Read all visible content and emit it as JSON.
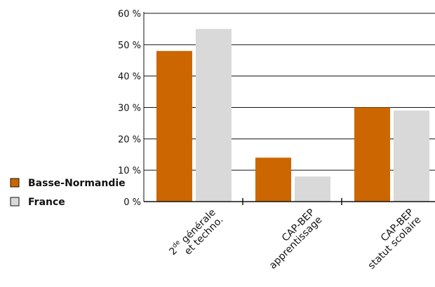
{
  "chart_data": {
    "type": "bar",
    "categories": [
      {
        "label": "2de générale et techno.",
        "lines": [
          {
            "main": "2",
            "sup": "de",
            "rest": " générale"
          },
          {
            "main": "et techno.",
            "sup": "",
            "rest": ""
          }
        ]
      },
      {
        "label": "CAP-BEP apprentissage",
        "lines": [
          {
            "main": "CAP-BEP",
            "sup": "",
            "rest": ""
          },
          {
            "main": "apprentissage",
            "sup": "",
            "rest": ""
          }
        ]
      },
      {
        "label": "CAP-BEP statut scolaire",
        "lines": [
          {
            "main": "CAP-BEP",
            "sup": "",
            "rest": ""
          },
          {
            "main": "statut scolaire",
            "sup": "",
            "rest": ""
          }
        ]
      }
    ],
    "series": [
      {
        "name": "Basse-Normandie",
        "color": "#cc6600",
        "values": [
          48,
          14,
          30
        ]
      },
      {
        "name": "France",
        "color": "#d9d9d9",
        "values": [
          55,
          8,
          29
        ]
      }
    ],
    "title": "",
    "xlabel": "",
    "ylabel": "",
    "ylim": [
      0,
      60
    ],
    "yticks": [
      0,
      10,
      20,
      30,
      40,
      50,
      60
    ],
    "ytick_suffix": " %",
    "grid": true,
    "legend_position": "left"
  }
}
